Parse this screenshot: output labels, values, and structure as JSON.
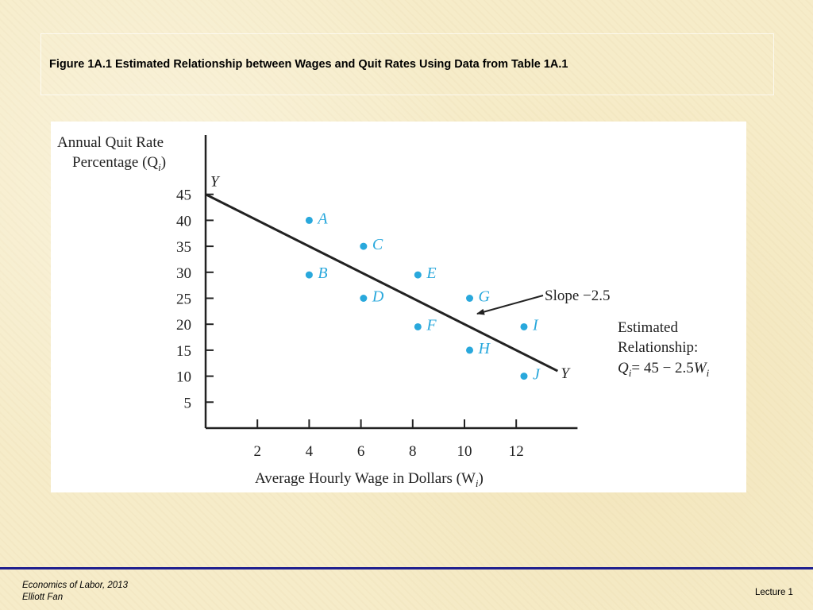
{
  "slide": {
    "title": "Figure 1A.1   Estimated Relationship between Wages and Quit Rates Using Data from Table 1A.1"
  },
  "footer": {
    "course": "Economics of Labor, 2013",
    "author": "Elliott Fan",
    "lecture": "Lecture 1"
  },
  "colors": {
    "point": "#29a8dc",
    "line": "#222222",
    "footer_rule": "#1f1f8f",
    "background": "#f6ecc9"
  },
  "chart_data": {
    "type": "scatter",
    "ylabel_line1": "Annual Quit Rate",
    "ylabel_line2": "Percentage (Q",
    "ylabel_sub": "i",
    "ylabel_end": ")",
    "xlabel": "Average Hourly Wage in Dollars (W",
    "xlabel_sub": "i",
    "xlabel_end": ")",
    "xlim": [
      0,
      14
    ],
    "ylim": [
      0,
      47
    ],
    "x_ticks": [
      2,
      4,
      6,
      8,
      10,
      12
    ],
    "y_ticks": [
      5,
      10,
      15,
      20,
      25,
      30,
      35,
      40,
      45
    ],
    "points": [
      {
        "label": "A",
        "x": 4,
        "y": 40
      },
      {
        "label": "B",
        "x": 4,
        "y": 29.5
      },
      {
        "label": "C",
        "x": 6.1,
        "y": 35
      },
      {
        "label": "D",
        "x": 6.1,
        "y": 25
      },
      {
        "label": "E",
        "x": 8.2,
        "y": 29.5
      },
      {
        "label": "F",
        "x": 8.2,
        "y": 19.5
      },
      {
        "label": "G",
        "x": 10.2,
        "y": 25
      },
      {
        "label": "H",
        "x": 10.2,
        "y": 15
      },
      {
        "label": "I",
        "x": 12.3,
        "y": 19.5
      },
      {
        "label": "J",
        "x": 12.3,
        "y": 10
      }
    ],
    "regression": {
      "intercept": 45,
      "slope": -2.5,
      "x_end": 13.6,
      "end_label": "Y"
    },
    "annotations": {
      "slope_text": "Slope −2.5",
      "relationship_line1": "Estimated",
      "relationship_line2": "Relationship:",
      "eq_q": "Q",
      "eq_sub_i": "i",
      "eq_mid": "= 45 − 2.5",
      "eq_w": "W",
      "eq_sub_i2": "i"
    }
  }
}
